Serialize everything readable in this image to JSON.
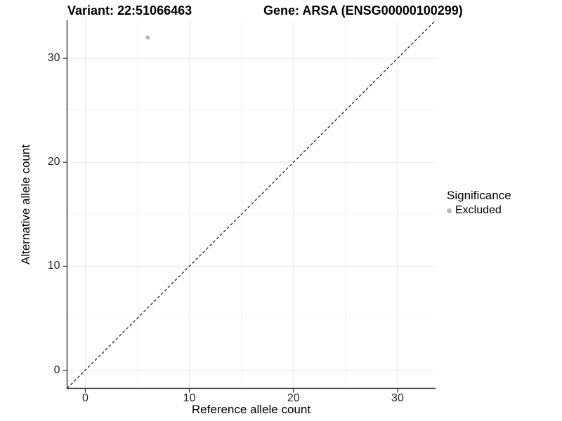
{
  "title": {
    "left": "Variant: 22:51066463",
    "right": "Gene: ARSA (ENSG00000100299)"
  },
  "chart_data": {
    "type": "scatter",
    "xlabel": "Reference allele count",
    "ylabel": "Alternative allele count",
    "xlim": [
      -1.75,
      33.65
    ],
    "ylim": [
      -1.75,
      33.65
    ],
    "x_major_ticks": [
      0,
      10,
      20,
      30
    ],
    "y_major_ticks": [
      0,
      10,
      20,
      30
    ],
    "x_minor_ticks": [
      5,
      15,
      25
    ],
    "y_minor_ticks": [
      5,
      15,
      25
    ],
    "grid": "on",
    "points": [
      {
        "x": 6,
        "y": 32,
        "series": "Excluded"
      }
    ],
    "reference_line": {
      "kind": "identity",
      "slope": 1,
      "intercept": 0,
      "style": "dashed"
    },
    "legend": {
      "title": "Significance",
      "position": "right",
      "entries": [
        {
          "label": "Excluded",
          "marker": "circle",
          "color": "#b9b9b9"
        }
      ]
    }
  },
  "colors": {
    "point": "#b9b9b9",
    "grid_major": "#eaeaea",
    "grid_minor": "#f4f4f4",
    "axis_line": "#333333",
    "reference_line": "#000000",
    "tick_text": "#262626"
  }
}
